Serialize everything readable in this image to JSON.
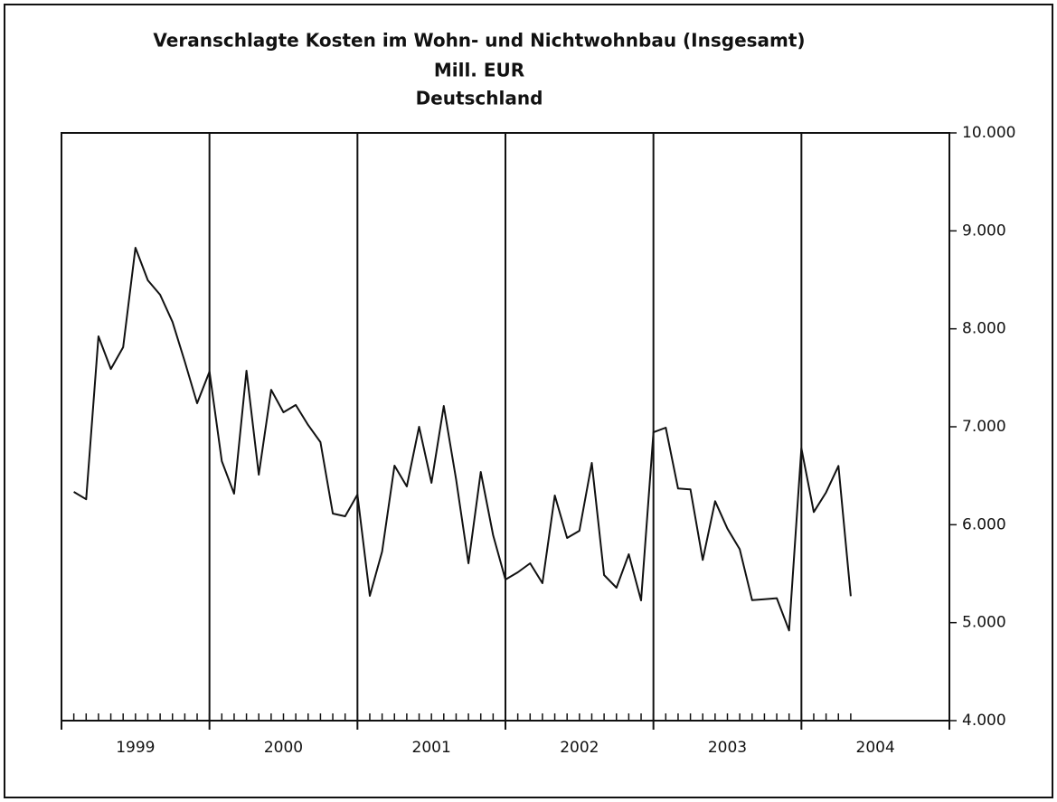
{
  "chart_data": {
    "type": "line",
    "title": "Veranschlagte Kosten im Wohn- und Nichtwohnbau (Insgesamt)",
    "subtitle": "Mill. EUR",
    "region": "Deutschland",
    "year_labels": [
      "1999",
      "2000",
      "2001",
      "2002",
      "2003",
      "2004"
    ],
    "categories": [
      null,
      null,
      null,
      null,
      null,
      null,
      null,
      null,
      null,
      null,
      null,
      null,
      null,
      null,
      null,
      null,
      null,
      null,
      null,
      null,
      null,
      null,
      null,
      null,
      null,
      null,
      null,
      null,
      null,
      null,
      null,
      null,
      null,
      null,
      null,
      null,
      null,
      null,
      null,
      null,
      null,
      null,
      null,
      null,
      null,
      null,
      null,
      null,
      null,
      null,
      null,
      null,
      null,
      null,
      null,
      null,
      null,
      null,
      null,
      null,
      null,
      null,
      null,
      null
    ],
    "values": [
      6335,
      6260,
      7923,
      7590,
      7812,
      8828,
      8495,
      8348,
      8070,
      7665,
      7240,
      7563,
      6649,
      6317,
      7572,
      6511,
      7378,
      7148,
      7222,
      7018,
      6843,
      6114,
      6086,
      6308,
      5274,
      5726,
      6603,
      6391,
      7000,
      6428,
      7212,
      6465,
      5606,
      6538,
      5892,
      5440,
      5514,
      5606,
      5403,
      6298,
      5865,
      5938,
      6631,
      5486,
      5357,
      5698,
      5228,
      6944,
      6991,
      6370,
      6360,
      5640,
      6240,
      5960,
      5750,
      5230,
      5240,
      5250,
      4920,
      6780,
      6130,
      6330,
      6600,
      5270
    ],
    "color": "#111111",
    "ylim": [
      4000,
      10000
    ],
    "yticks": [
      {
        "value": 4000,
        "label": "4.000"
      },
      {
        "value": 5000,
        "label": "5.000"
      },
      {
        "value": 6000,
        "label": "6.000"
      },
      {
        "value": 7000,
        "label": "7.000"
      },
      {
        "value": 8000,
        "label": "8.000"
      },
      {
        "value": 9000,
        "label": "9.000"
      },
      {
        "value": 10000,
        "label": "10.000"
      }
    ],
    "y_axis_side": "right"
  }
}
